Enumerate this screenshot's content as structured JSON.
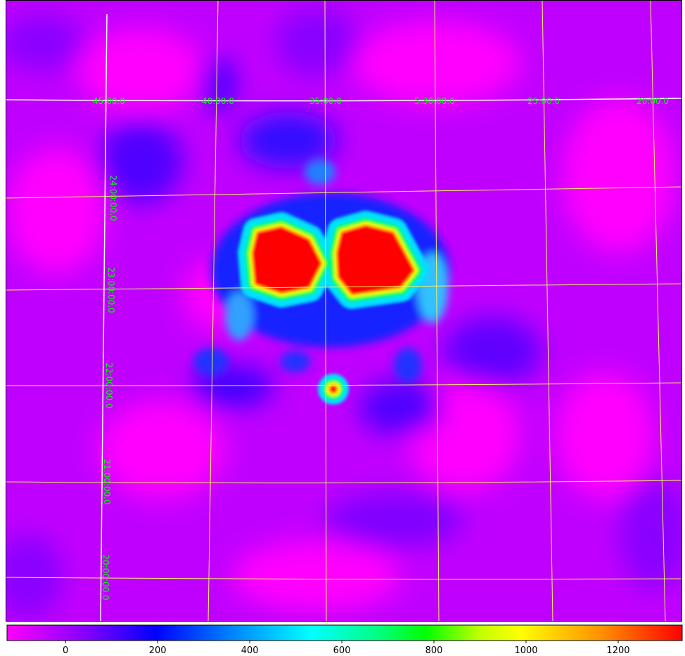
{
  "image": {
    "ra_labels": [
      "45:00.0",
      "40:00.0",
      "35:00.0",
      "5:30:00.0",
      "25:00.0",
      "20:00.0"
    ],
    "dec_labels": [
      "24:00:00.0",
      "23:00:00.0",
      "22:00:00.0",
      "21:00:00.0",
      "20:00:00.0"
    ]
  },
  "colorbar": {
    "lim": [
      -127,
      1339
    ],
    "ticks": [
      0,
      200,
      400,
      600,
      800,
      1000,
      1200
    ]
  }
}
